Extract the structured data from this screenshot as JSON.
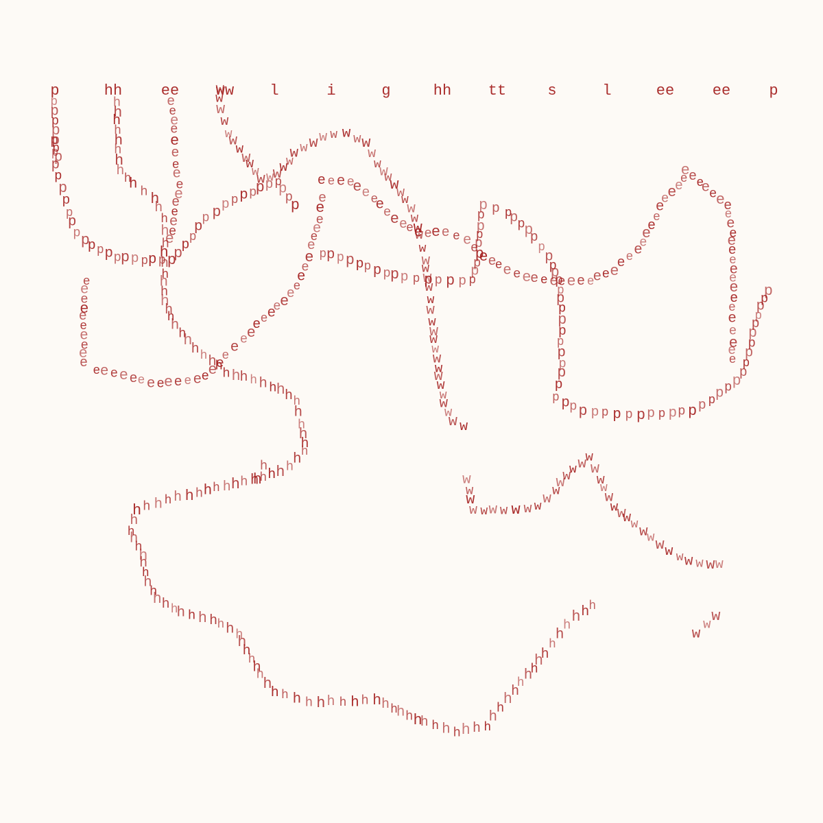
{
  "title_letters": [
    "p",
    "hh",
    "ee",
    "ww",
    "l",
    "i",
    "g",
    "hh",
    "tt",
    "s",
    "l",
    "ee",
    "ee",
    "p"
  ],
  "trail_letters": [
    "p",
    "h",
    "e",
    "w",
    "p",
    "e",
    "h",
    "e",
    "w",
    "e",
    "p",
    "h",
    "p",
    "w"
  ],
  "colors": {
    "ink": "#a41d1d",
    "background": "#fdfaf6"
  }
}
